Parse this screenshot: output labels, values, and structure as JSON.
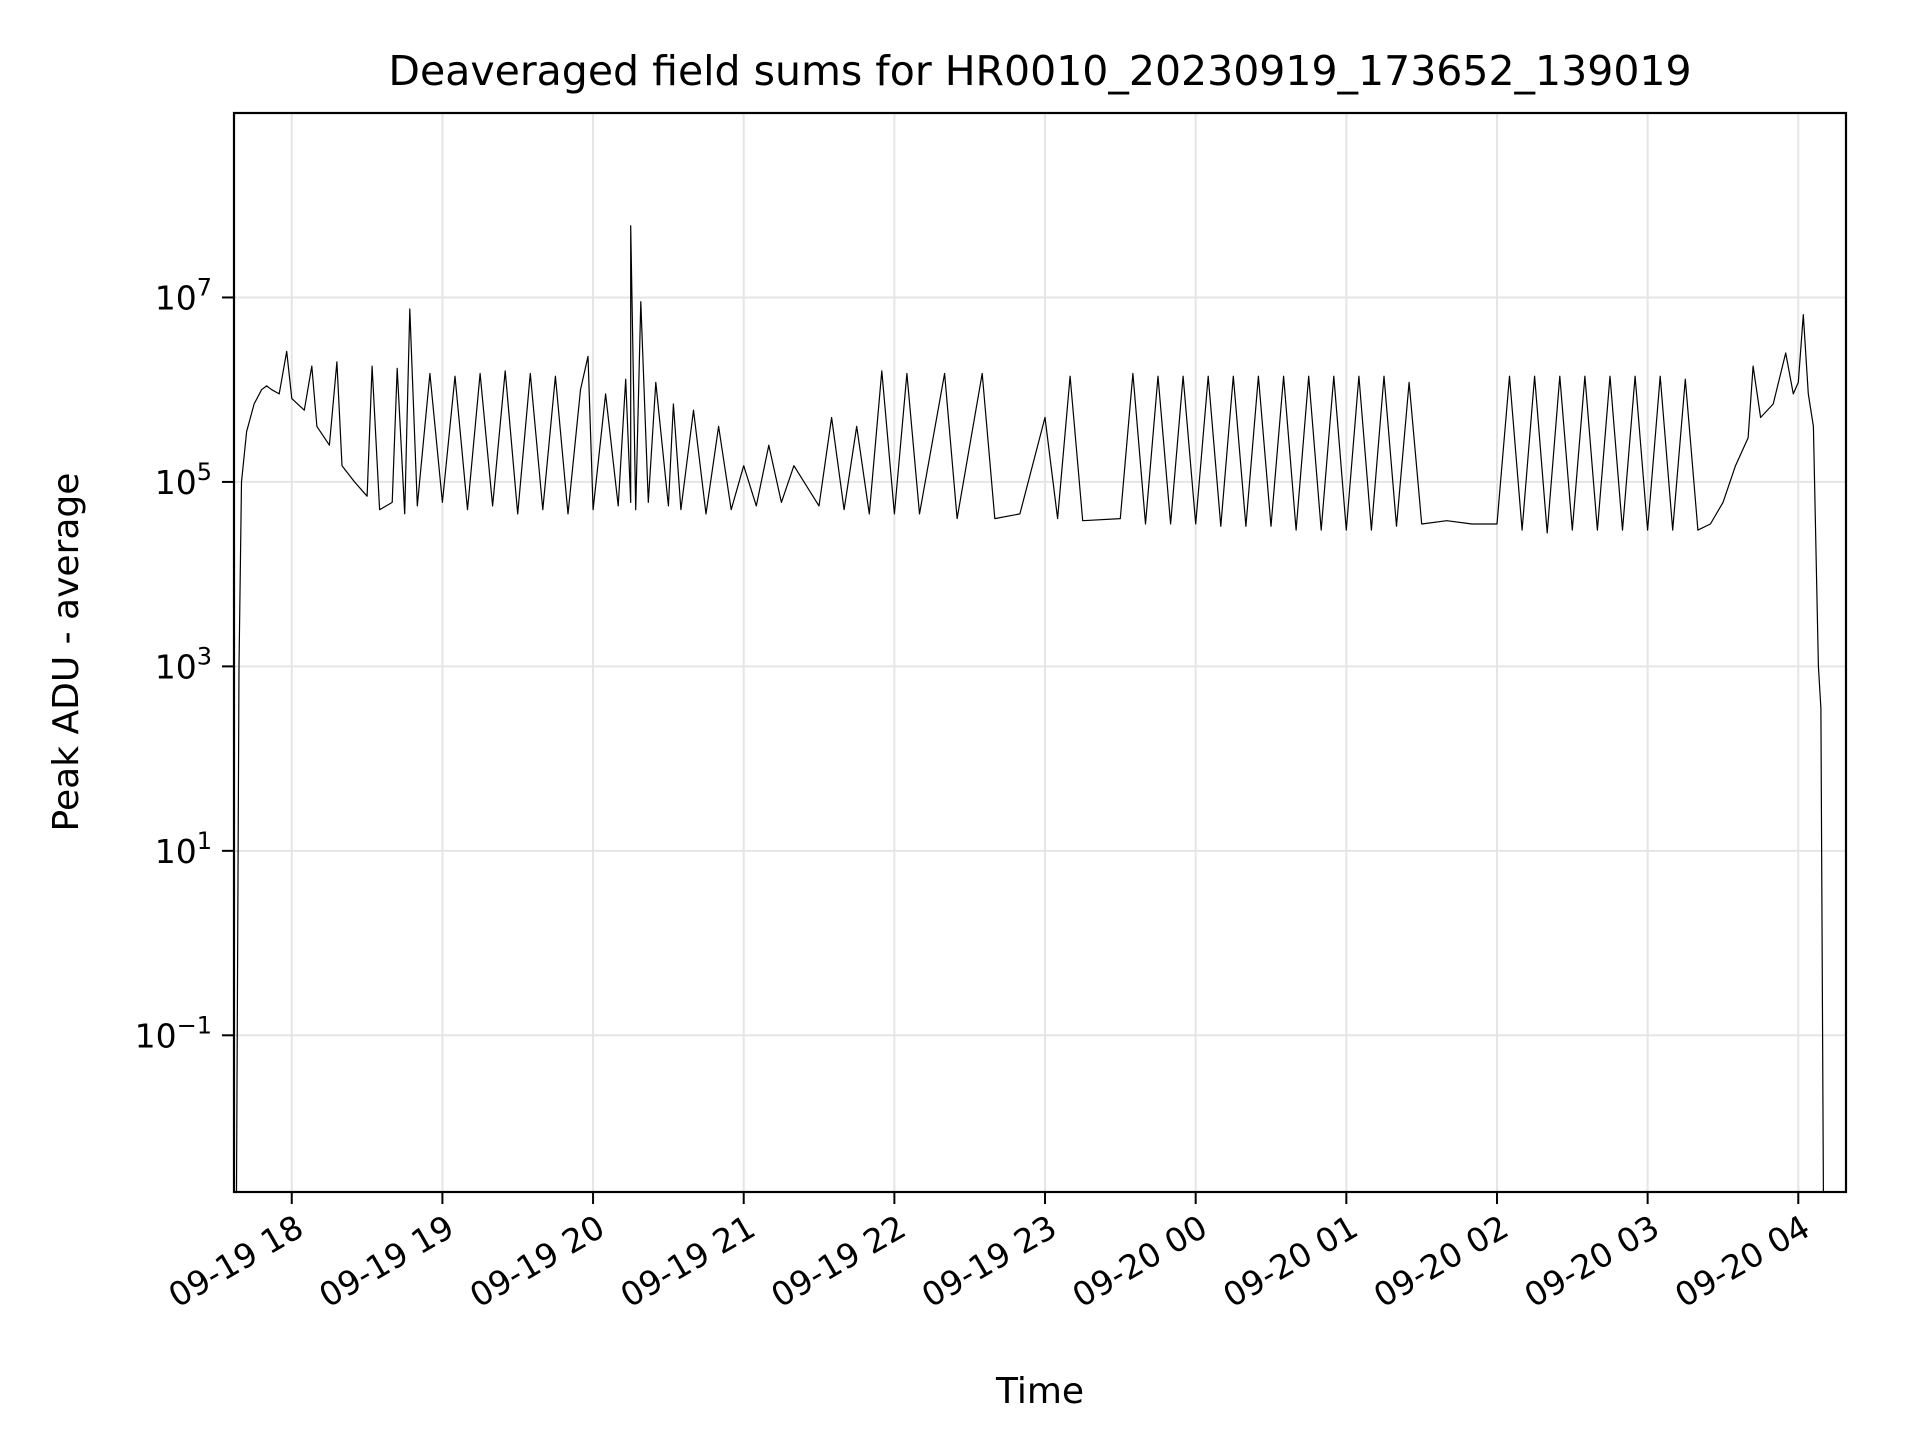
{
  "chart_data": {
    "type": "line",
    "title": "Deaveraged field sums for HR0010_20230919_173652_139019",
    "xlabel": "Time",
    "ylabel": "Peak ADU - average",
    "x_scale": "time",
    "y_scale": "log",
    "xlim": [
      "2023-09-19 17:37",
      "2023-09-20 04:19"
    ],
    "ylim": [
      0.002,
      1000000000.0
    ],
    "grid": true,
    "legend": "none",
    "line_color": "#000000",
    "x_ticks": [
      {
        "label": "09-19 18",
        "value": "2023-09-19 18:00"
      },
      {
        "label": "09-19 19",
        "value": "2023-09-19 19:00"
      },
      {
        "label": "09-19 20",
        "value": "2023-09-19 20:00"
      },
      {
        "label": "09-19 21",
        "value": "2023-09-19 21:00"
      },
      {
        "label": "09-19 22",
        "value": "2023-09-19 22:00"
      },
      {
        "label": "09-19 23",
        "value": "2023-09-19 23:00"
      },
      {
        "label": "09-20 00",
        "value": "2023-09-20 00:00"
      },
      {
        "label": "09-20 01",
        "value": "2023-09-20 01:00"
      },
      {
        "label": "09-20 02",
        "value": "2023-09-20 02:00"
      },
      {
        "label": "09-20 03",
        "value": "2023-09-20 03:00"
      },
      {
        "label": "09-20 04",
        "value": "2023-09-20 04:00"
      }
    ],
    "y_ticks": [
      {
        "base": "10",
        "exp": "−1",
        "value": 0.1
      },
      {
        "base": "10",
        "exp": "1",
        "value": 10
      },
      {
        "base": "10",
        "exp": "3",
        "value": 1000
      },
      {
        "base": "10",
        "exp": "5",
        "value": 100000
      },
      {
        "base": "10",
        "exp": "7",
        "value": 10000000
      }
    ],
    "series": [
      {
        "points": [
          [
            "2023-09-19 17:38",
            0.002
          ],
          [
            "2023-09-19 17:39",
            1000
          ],
          [
            "2023-09-19 17:40",
            100000
          ],
          [
            "2023-09-19 17:42",
            350000
          ],
          [
            "2023-09-19 17:45",
            700000
          ],
          [
            "2023-09-19 17:48",
            1000000
          ],
          [
            "2023-09-19 17:50",
            1100000
          ],
          [
            "2023-09-19 17:52",
            1000000
          ],
          [
            "2023-09-19 17:55",
            900000
          ],
          [
            "2023-09-19 17:58",
            2600000
          ],
          [
            "2023-09-19 18:00",
            800000
          ],
          [
            "2023-09-19 18:05",
            600000
          ],
          [
            "2023-09-19 18:08",
            1800000
          ],
          [
            "2023-09-19 18:10",
            400000
          ],
          [
            "2023-09-19 18:15",
            250000
          ],
          [
            "2023-09-19 18:18",
            2000000
          ],
          [
            "2023-09-19 18:20",
            150000
          ],
          [
            "2023-09-19 18:25",
            100000
          ],
          [
            "2023-09-19 18:30",
            70000
          ],
          [
            "2023-09-19 18:32",
            1800000
          ],
          [
            "2023-09-19 18:35",
            50000
          ],
          [
            "2023-09-19 18:40",
            60000
          ],
          [
            "2023-09-19 18:42",
            1700000
          ],
          [
            "2023-09-19 18:45",
            45000
          ],
          [
            "2023-09-19 18:47",
            7500000
          ],
          [
            "2023-09-19 18:50",
            55000
          ],
          [
            "2023-09-19 18:55",
            1500000
          ],
          [
            "2023-09-19 19:00",
            60000
          ],
          [
            "2023-09-19 19:05",
            1400000
          ],
          [
            "2023-09-19 19:10",
            50000
          ],
          [
            "2023-09-19 19:15",
            1500000
          ],
          [
            "2023-09-19 19:20",
            55000
          ],
          [
            "2023-09-19 19:25",
            1600000
          ],
          [
            "2023-09-19 19:30",
            45000
          ],
          [
            "2023-09-19 19:35",
            1500000
          ],
          [
            "2023-09-19 19:40",
            50000
          ],
          [
            "2023-09-19 19:45",
            1400000
          ],
          [
            "2023-09-19 19:50",
            45000
          ],
          [
            "2023-09-19 19:55",
            1000000
          ],
          [
            "2023-09-19 19:58",
            2300000
          ],
          [
            "2023-09-19 20:00",
            50000
          ],
          [
            "2023-09-19 20:05",
            900000
          ],
          [
            "2023-09-19 20:10",
            55000
          ],
          [
            "2023-09-19 20:13",
            1300000
          ],
          [
            "2023-09-19 20:15",
            60000
          ],
          [
            "2023-09-19 20:15",
            60000000
          ],
          [
            "2023-09-19 20:17",
            50000
          ],
          [
            "2023-09-19 20:19",
            9000000
          ],
          [
            "2023-09-19 20:22",
            60000
          ],
          [
            "2023-09-19 20:25",
            1200000
          ],
          [
            "2023-09-19 20:30",
            55000
          ],
          [
            "2023-09-19 20:32",
            700000
          ],
          [
            "2023-09-19 20:35",
            50000
          ],
          [
            "2023-09-19 20:40",
            600000
          ],
          [
            "2023-09-19 20:45",
            45000
          ],
          [
            "2023-09-19 20:50",
            400000
          ],
          [
            "2023-09-19 20:55",
            50000
          ],
          [
            "2023-09-19 21:00",
            150000
          ],
          [
            "2023-09-19 21:05",
            55000
          ],
          [
            "2023-09-19 21:10",
            250000
          ],
          [
            "2023-09-19 21:15",
            60000
          ],
          [
            "2023-09-19 21:20",
            150000
          ],
          [
            "2023-09-19 21:30",
            55000
          ],
          [
            "2023-09-19 21:35",
            500000
          ],
          [
            "2023-09-19 21:40",
            50000
          ],
          [
            "2023-09-19 21:45",
            400000
          ],
          [
            "2023-09-19 21:50",
            45000
          ],
          [
            "2023-09-19 21:55",
            1600000
          ],
          [
            "2023-09-19 22:00",
            45000
          ],
          [
            "2023-09-19 22:05",
            1500000
          ],
          [
            "2023-09-19 22:10",
            45000
          ],
          [
            "2023-09-19 22:20",
            1500000
          ],
          [
            "2023-09-19 22:25",
            40000
          ],
          [
            "2023-09-19 22:35",
            1500000
          ],
          [
            "2023-09-19 22:40",
            40000
          ],
          [
            "2023-09-19 22:50",
            45000
          ],
          [
            "2023-09-19 23:00",
            500000
          ],
          [
            "2023-09-19 23:05",
            40000
          ],
          [
            "2023-09-19 23:10",
            1400000
          ],
          [
            "2023-09-19 23:15",
            38000
          ],
          [
            "2023-09-19 23:30",
            40000
          ],
          [
            "2023-09-19 23:35",
            1500000
          ],
          [
            "2023-09-19 23:40",
            35000
          ],
          [
            "2023-09-19 23:45",
            1400000
          ],
          [
            "2023-09-19 23:50",
            35000
          ],
          [
            "2023-09-19 23:55",
            1400000
          ],
          [
            "2023-09-20 00:00",
            35000
          ],
          [
            "2023-09-20 00:05",
            1400000
          ],
          [
            "2023-09-20 00:10",
            33000
          ],
          [
            "2023-09-20 00:15",
            1400000
          ],
          [
            "2023-09-20 00:20",
            33000
          ],
          [
            "2023-09-20 00:25",
            1400000
          ],
          [
            "2023-09-20 00:30",
            33000
          ],
          [
            "2023-09-20 00:35",
            1400000
          ],
          [
            "2023-09-20 00:40",
            30000
          ],
          [
            "2023-09-20 00:45",
            1400000
          ],
          [
            "2023-09-20 00:50",
            30000
          ],
          [
            "2023-09-20 00:55",
            1400000
          ],
          [
            "2023-09-20 01:00",
            30000
          ],
          [
            "2023-09-20 01:05",
            1400000
          ],
          [
            "2023-09-20 01:10",
            30000
          ],
          [
            "2023-09-20 01:15",
            1400000
          ],
          [
            "2023-09-20 01:20",
            33000
          ],
          [
            "2023-09-20 01:25",
            1200000
          ],
          [
            "2023-09-20 01:30",
            35000
          ],
          [
            "2023-09-20 01:40",
            38000
          ],
          [
            "2023-09-20 01:50",
            35000
          ],
          [
            "2023-09-20 02:00",
            35000
          ],
          [
            "2023-09-20 02:05",
            1400000
          ],
          [
            "2023-09-20 02:10",
            30000
          ],
          [
            "2023-09-20 02:15",
            1400000
          ],
          [
            "2023-09-20 02:20",
            28000
          ],
          [
            "2023-09-20 02:25",
            1400000
          ],
          [
            "2023-09-20 02:30",
            30000
          ],
          [
            "2023-09-20 02:35",
            1400000
          ],
          [
            "2023-09-20 02:40",
            30000
          ],
          [
            "2023-09-20 02:45",
            1400000
          ],
          [
            "2023-09-20 02:50",
            30000
          ],
          [
            "2023-09-20 02:55",
            1400000
          ],
          [
            "2023-09-20 03:00",
            30000
          ],
          [
            "2023-09-20 03:05",
            1400000
          ],
          [
            "2023-09-20 03:10",
            30000
          ],
          [
            "2023-09-20 03:15",
            1300000
          ],
          [
            "2023-09-20 03:20",
            30000
          ],
          [
            "2023-09-20 03:25",
            35000
          ],
          [
            "2023-09-20 03:30",
            60000
          ],
          [
            "2023-09-20 03:35",
            150000
          ],
          [
            "2023-09-20 03:40",
            300000
          ],
          [
            "2023-09-20 03:42",
            1800000
          ],
          [
            "2023-09-20 03:45",
            500000
          ],
          [
            "2023-09-20 03:50",
            700000
          ],
          [
            "2023-09-20 03:55",
            2500000
          ],
          [
            "2023-09-20 03:58",
            900000
          ],
          [
            "2023-09-20 04:00",
            1200000
          ],
          [
            "2023-09-20 04:02",
            6500000
          ],
          [
            "2023-09-20 04:04",
            900000
          ],
          [
            "2023-09-20 04:06",
            400000
          ],
          [
            "2023-09-20 04:08",
            1000
          ],
          [
            "2023-09-20 04:09",
            350
          ],
          [
            "2023-09-20 04:10",
            0.002
          ]
        ]
      }
    ]
  }
}
